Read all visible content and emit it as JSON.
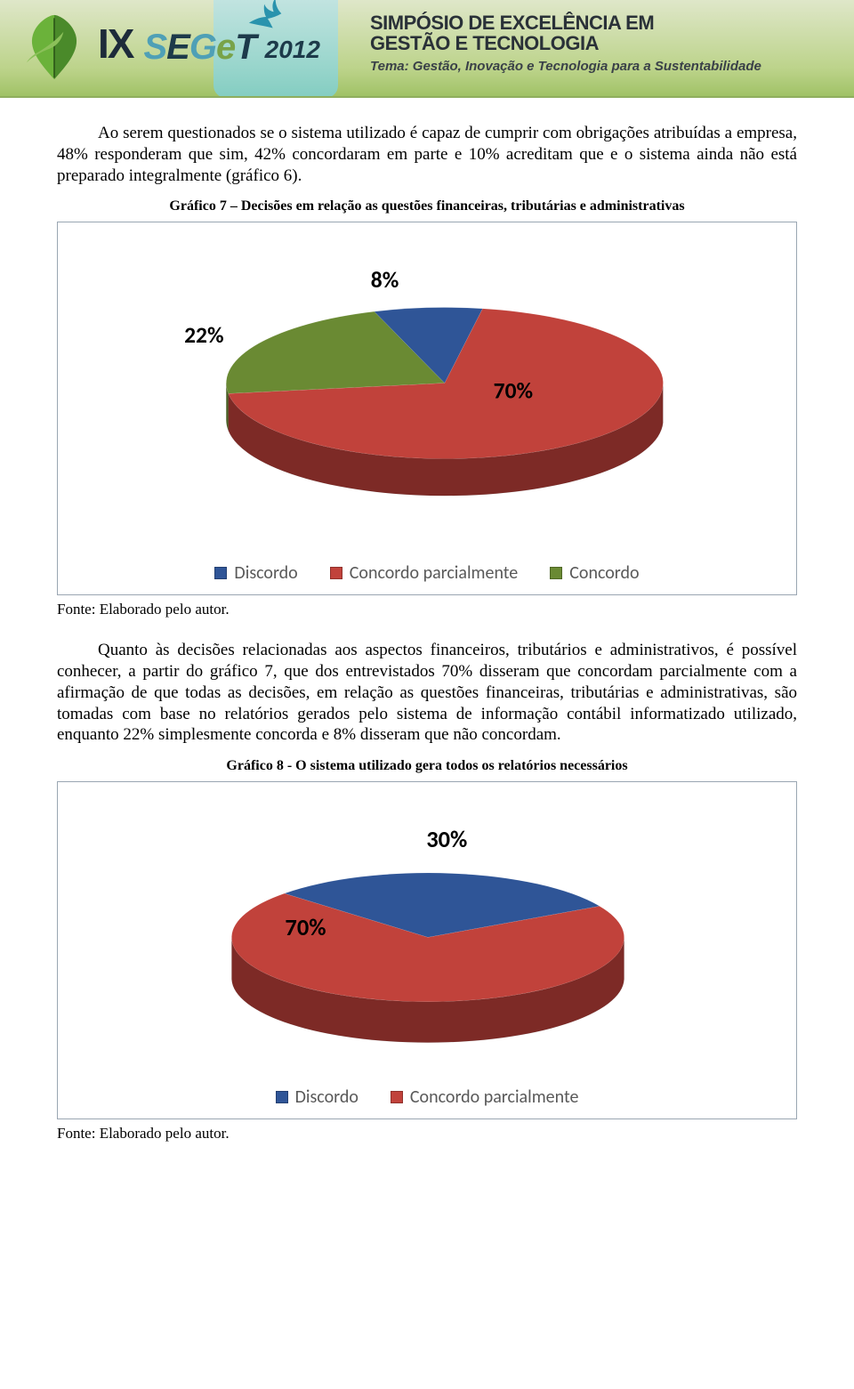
{
  "banner": {
    "roman": "IX",
    "seget_letters": [
      "S",
      "E",
      "G",
      "e",
      "T"
    ],
    "year": "2012",
    "title_line1": "SIMPÓSIO DE EXCELÊNCIA EM",
    "title_line2": "GESTÃO E TECNOLOGIA",
    "subtitle": "Tema: Gestão, Inovação e Tecnologia para a Sustentabilidade",
    "colors": {
      "bg_top": "#dfe7c9",
      "bg_bottom": "#a0c266",
      "teal": "#7ecfd1",
      "bird": "#2a9ab3",
      "leaf_green": "#5aa33a"
    }
  },
  "para1": "Ao serem questionados se o sistema utilizado é capaz de cumprir com obrigações atribuídas a empresa, 48% responderam que sim, 42% concordaram em parte e 10% acreditam que e o sistema ainda não está preparado integralmente (gráfico 6).",
  "caption7": "Gráfico 7 – Decisões em relação as questões financeiras, tributárias e administrativas",
  "chart7": {
    "type": "pie-3d",
    "slices": [
      {
        "label": "Discordo",
        "value": 8,
        "color": "#2f5597",
        "color_side": "#1f3a66"
      },
      {
        "label": "Concordo parcialmente",
        "value": 70,
        "color": "#c1423b",
        "color_side": "#7d2a26"
      },
      {
        "label": "Concordo",
        "value": 22,
        "color": "#6a8a33",
        "color_side": "#4a6123"
      }
    ],
    "label_fontsize": 27,
    "label_weight": 700,
    "background": "#ffffff",
    "frame_border": "#9aa6b2",
    "legend_fontsize": 20,
    "legend_color": "#595959"
  },
  "source7": "Fonte: Elaborado pelo autor.",
  "para2": "Quanto às decisões relacionadas aos aspectos financeiros, tributários e administrativos, é possível conhecer, a partir do gráfico 7, que dos entrevistados 70% disseram que concordam parcialmente com a afirmação de que todas as decisões, em relação as questões financeiras, tributárias e administrativas, são tomadas com base no relatórios gerados pelo sistema de informação contábil informatizado utilizado, enquanto 22% simplesmente concorda e 8% disseram que não concordam.",
  "caption8": "Gráfico 8 - O sistema utilizado gera todos os relatórios necessários",
  "chart8": {
    "type": "pie-3d",
    "slices": [
      {
        "label": "Discordo",
        "value": 30,
        "color": "#2f5597",
        "color_side": "#1f3a66"
      },
      {
        "label": "Concordo parcialmente",
        "value": 70,
        "color": "#c1423b",
        "color_side": "#7d2a26"
      }
    ],
    "label_fontsize": 30,
    "label_weight": 700,
    "background": "#ffffff",
    "frame_border": "#9aa6b2"
  },
  "source8": "Fonte: Elaborado pelo autor."
}
